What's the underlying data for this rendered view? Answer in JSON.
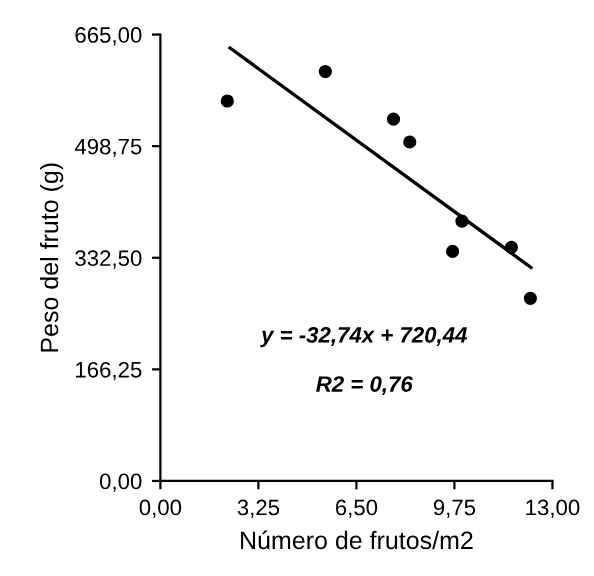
{
  "chart_data": {
    "type": "scatter",
    "xlabel": "Número de frutos/m2",
    "ylabel": "Peso del fruto (g)",
    "series": [
      {
        "marker": "circle",
        "color": "#000000",
        "x": [
          2.22,
          5.47,
          7.73,
          8.27,
          9.69,
          10.0,
          11.64,
          12.27
        ],
        "values": [
          566,
          610,
          539,
          505,
          342,
          387,
          348,
          272
        ]
      },
      {
        "type": "line",
        "color": "#000000",
        "x": [
          2.31,
          12.29
        ],
        "values": [
          645,
          318
        ]
      }
    ],
    "xlim": [
      0,
      13
    ],
    "ylim": [
      0,
      665
    ],
    "xticks": [
      {
        "value": 0,
        "label": "0,00"
      },
      {
        "value": 3.25,
        "label": "3,25"
      },
      {
        "value": 6.5,
        "label": "6,50"
      },
      {
        "value": 9.75,
        "label": "9,75"
      },
      {
        "value": 13,
        "label": "13,00"
      }
    ],
    "yticks": [
      {
        "value": 0,
        "label": "0,00"
      },
      {
        "value": 166.25,
        "label": "166,25"
      },
      {
        "value": 332.5,
        "label": "332,50"
      },
      {
        "value": 498.75,
        "label": "498,75"
      },
      {
        "value": 665,
        "label": "665,00"
      }
    ],
    "annotations": [
      "y = -32,74x + 720,44",
      "R2 = 0,76"
    ],
    "grid": false,
    "legend": false
  }
}
